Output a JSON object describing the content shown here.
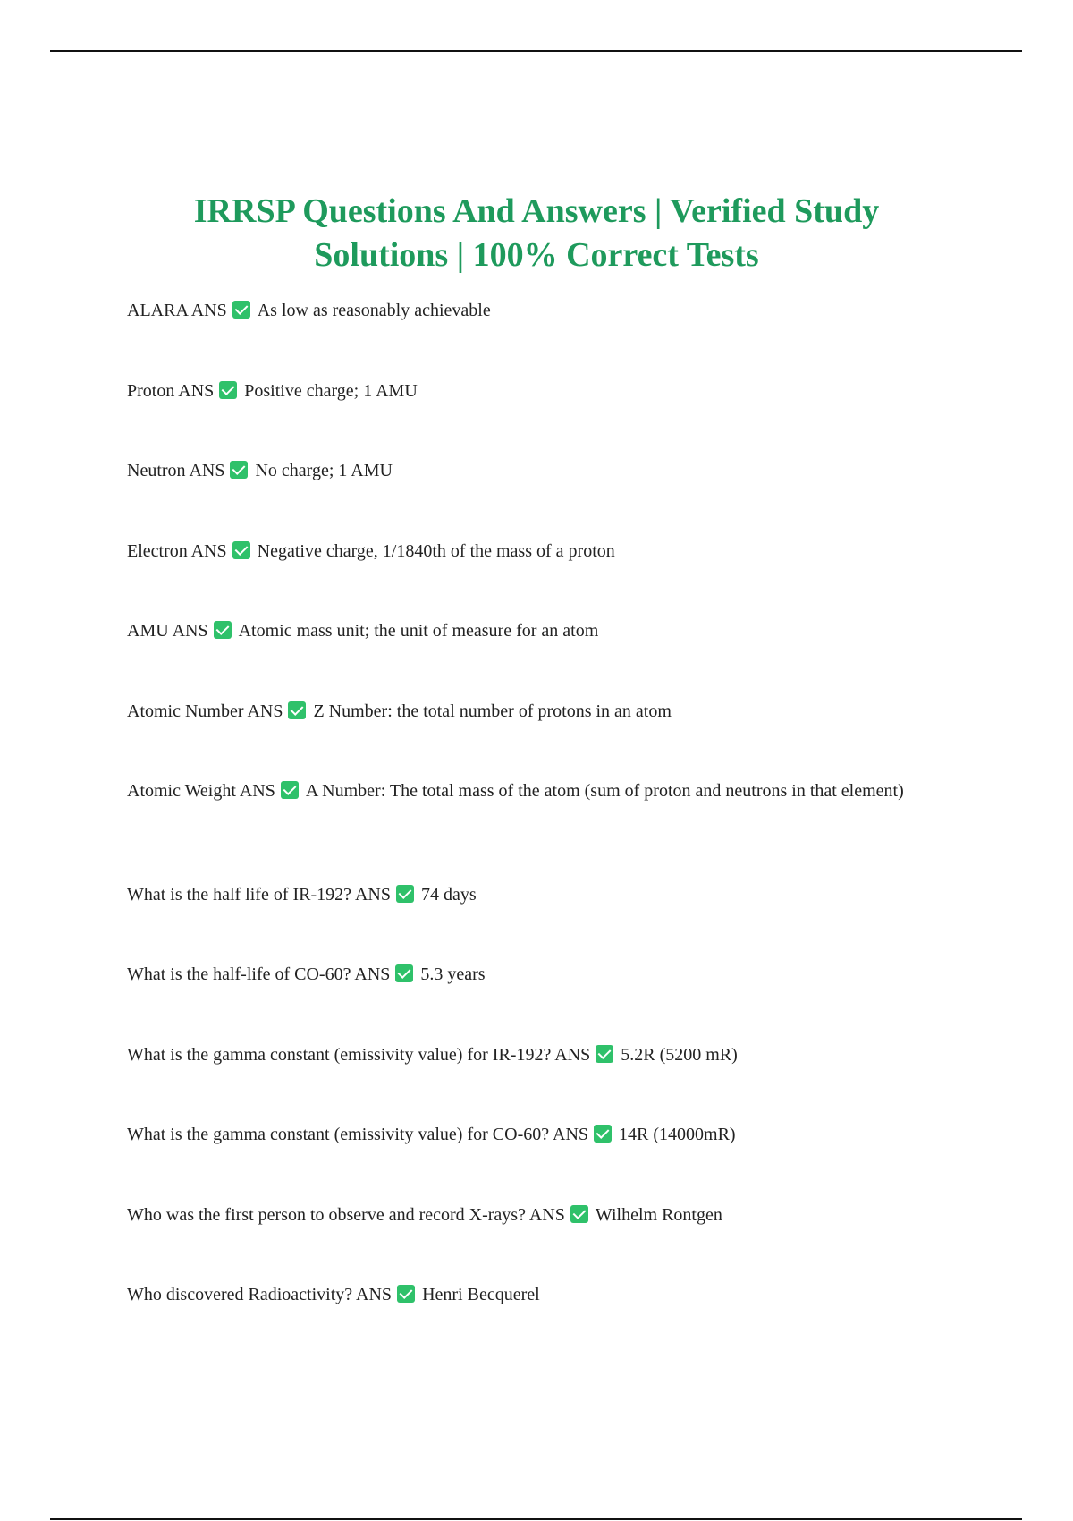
{
  "title": "IRRSP Questions And Answers | Verified Study Solutions | 100% Correct Tests",
  "answer_marker": "ANS",
  "check_icon_color": "#2fc16a",
  "title_color": "#1e9a5c",
  "items": [
    {
      "q": "ALARA",
      "a": "As low as reasonably achievable"
    },
    {
      "q": "Proton",
      "a": "Positive charge; 1 AMU"
    },
    {
      "q": "Neutron",
      "a": "No charge; 1 AMU"
    },
    {
      "q": "Electron",
      "a": "Negative charge, 1/1840th of the mass of a proton"
    },
    {
      "q": "AMU",
      "a": "Atomic mass unit; the unit of measure for an atom"
    },
    {
      "q": "Atomic Number",
      "a": "Z Number: the total number of protons in an atom"
    },
    {
      "q": "Atomic Weight",
      "a": "A Number: The total mass of the atom (sum of proton and neutrons in that element)"
    },
    {
      "q": "What is the half life of IR-192?",
      "a": "74 days"
    },
    {
      "q": "What is the half-life of CO-60?",
      "a": "5.3 years"
    },
    {
      "q": "What is the gamma constant (emissivity value) for IR-192?",
      "a": "5.2R (5200 mR)"
    },
    {
      "q": "What is the gamma constant (emissivity value) for CO-60?",
      "a": "14R (14000mR)"
    },
    {
      "q": "Who was the first person to observe and record X-rays?",
      "a": "Wilhelm Rontgen"
    },
    {
      "q": "Who discovered Radioactivity?",
      "a": "Henri Becquerel"
    }
  ]
}
